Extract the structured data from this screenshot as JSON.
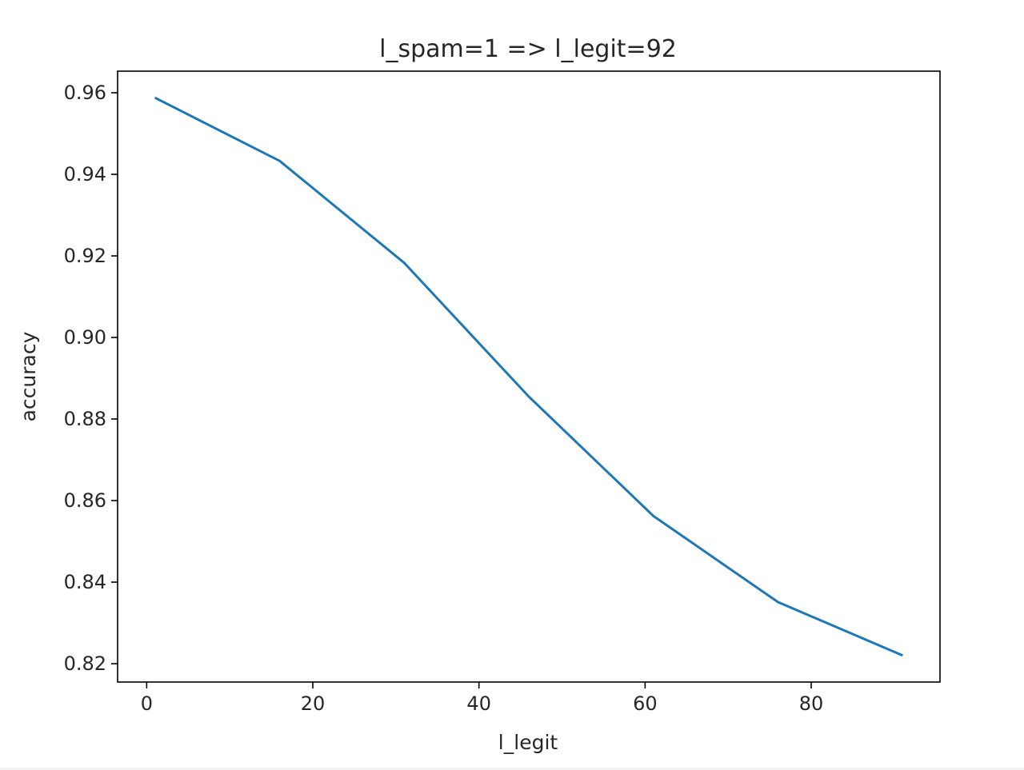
{
  "chart_data": {
    "type": "line",
    "title": "l_spam=1 => l_legit=92",
    "xlabel": "l_legit",
    "ylabel": "accuracy",
    "x": [
      1,
      16,
      31,
      46,
      61,
      76,
      91
    ],
    "series": [
      {
        "values": [
          0.9588,
          0.9433,
          0.9183,
          0.8855,
          0.8562,
          0.8351,
          0.822
        ],
        "color": "#1f77b4"
      }
    ],
    "xlim": [
      -3.5,
      95.5
    ],
    "ylim": [
      0.8155,
      0.9653
    ],
    "xticks": [
      0,
      20,
      40,
      60,
      80
    ],
    "xtick_labels": [
      "0",
      "20",
      "40",
      "60",
      "80"
    ],
    "yticks": [
      0.82,
      0.84,
      0.86,
      0.88,
      0.9,
      0.92,
      0.94,
      0.96
    ],
    "ytick_labels": [
      "0.82",
      "0.84",
      "0.86",
      "0.88",
      "0.90",
      "0.92",
      "0.94",
      "0.96"
    ],
    "grid": false,
    "legend": false
  }
}
